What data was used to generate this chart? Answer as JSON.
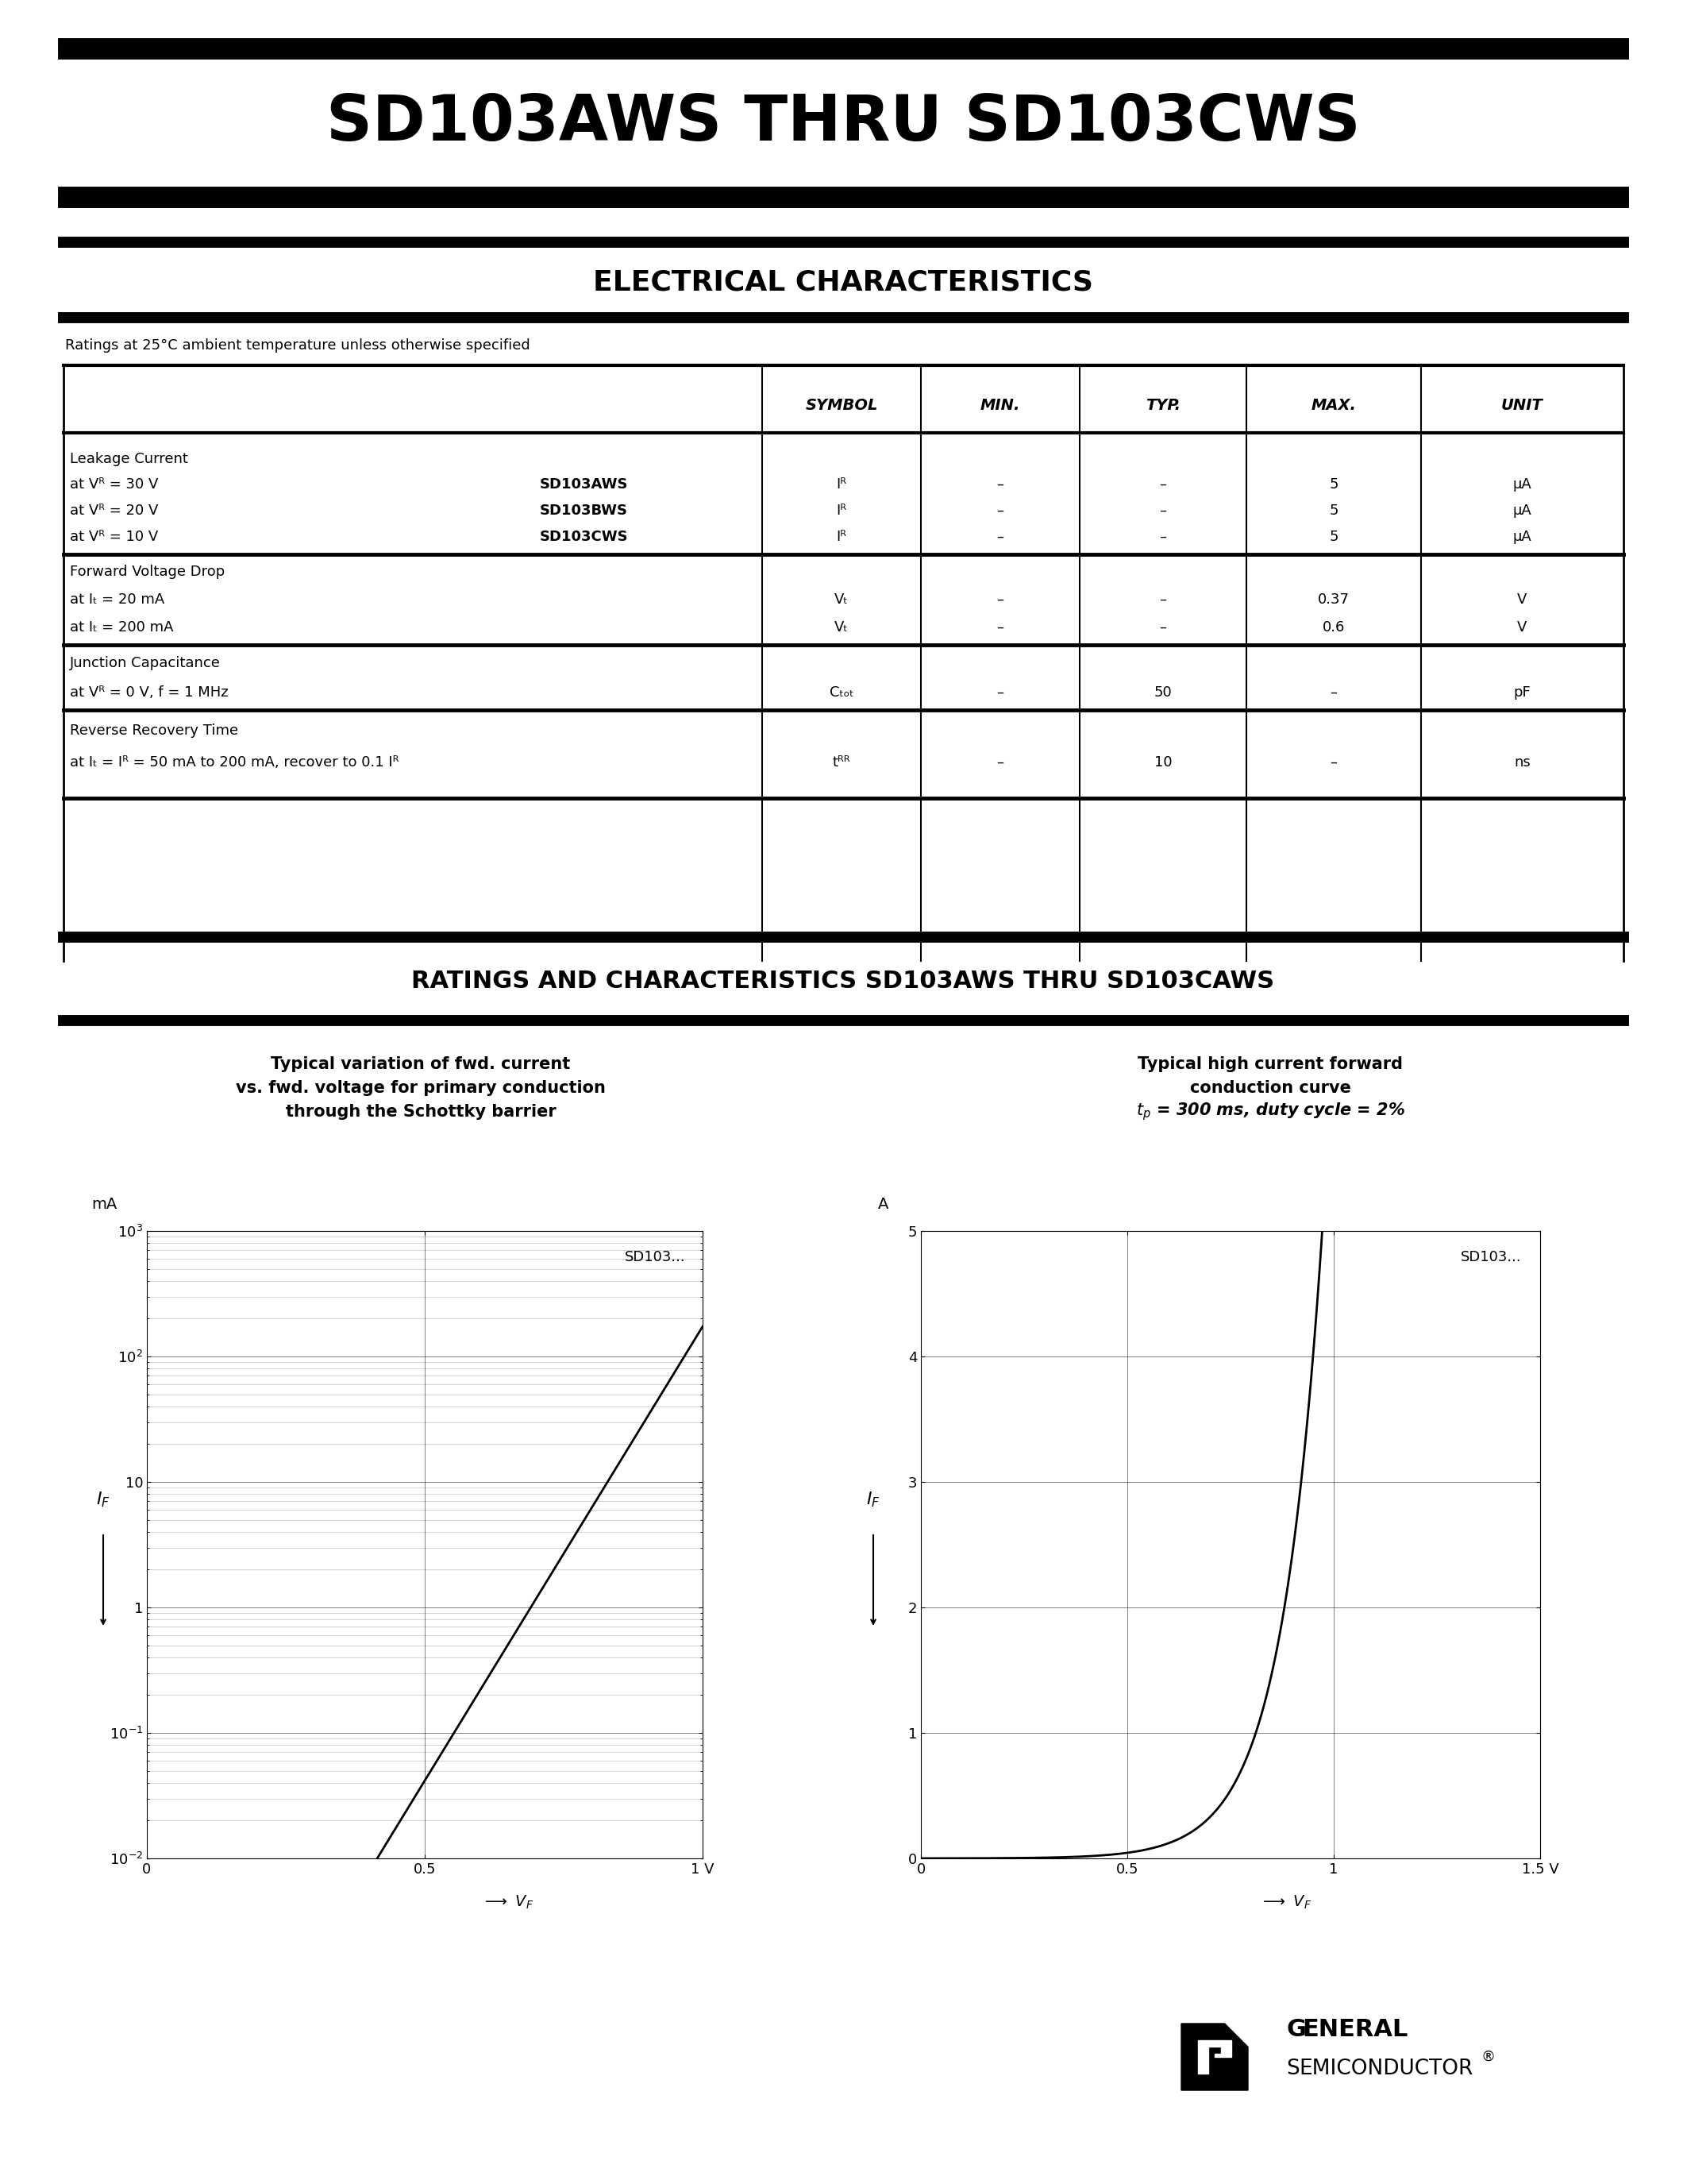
{
  "title": "SD103AWS THRU SD103CWS",
  "section1_title": "ELECTRICAL CHARACTERISTICS",
  "ratings_note": "Ratings at 25°C ambient temperature unless otherwise specified",
  "section2_title": "RATINGS AND CHARACTERISTICS SD103AWS THRU SD103CAWS",
  "plot1_title_line1": "Typical variation of fwd. current",
  "plot1_title_line2": "vs. fwd. voltage for primary conduction",
  "plot1_title_line3": "through the Schottky barrier",
  "plot1_ylabel_unit": "mA",
  "plot1_label": "SD103...",
  "plot2_title_line1": "Typical high current forward",
  "plot2_title_line2": "conduction curve",
  "plot2_title_line3": "t_p = 300 ms, duty cycle = 2%",
  "plot2_ylabel_unit": "A",
  "plot2_label": "SD103...",
  "background_color": "#ffffff",
  "text_color": "#000000"
}
